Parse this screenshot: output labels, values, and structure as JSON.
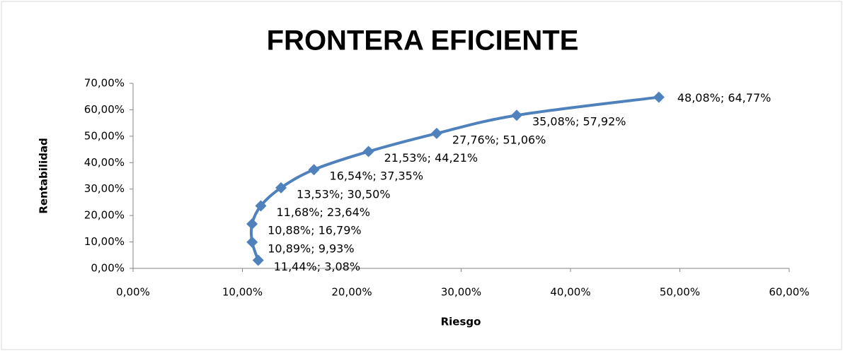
{
  "chart_data": {
    "type": "scatter",
    "title": "FRONTERA EFICIENTE",
    "x_label": "Riesgo",
    "y_label": "Rentabilidad",
    "series": [
      {
        "color": "#4f81bd",
        "x": [
          11.44,
          10.89,
          10.88,
          11.68,
          13.53,
          16.54,
          21.53,
          27.76,
          35.08,
          48.08
        ],
        "values": [
          3.08,
          9.93,
          16.79,
          23.64,
          30.5,
          37.35,
          44.21,
          51.06,
          57.92,
          64.77
        ],
        "value_labels": [
          "11,44%; 3,08%",
          "10,89%; 9,93%",
          "10,88%; 16,79%",
          "11,68%; 23,64%",
          "13,53%; 30,50%",
          "16,54%; 37,35%",
          "21,53%; 44,21%",
          "27,76%; 51,06%",
          "35,08%; 57,92%",
          "48,08%; 64,77%"
        ]
      }
    ],
    "xlim": [
      0,
      60
    ],
    "xticks": [
      {
        "value": 0,
        "label": "0,00%"
      },
      {
        "value": 10,
        "label": "10,00%"
      },
      {
        "value": 20,
        "label": "20,00%"
      },
      {
        "value": 30,
        "label": "30,00%"
      },
      {
        "value": 40,
        "label": "40,00%"
      },
      {
        "value": 50,
        "label": "50,00%"
      },
      {
        "value": 60,
        "label": "60,00%"
      }
    ],
    "ylim": [
      0,
      70
    ],
    "yticks": [
      {
        "value": 0,
        "label": "0,00%"
      },
      {
        "value": 10,
        "label": "10,00%"
      },
      {
        "value": 20,
        "label": "20,00%"
      },
      {
        "value": 30,
        "label": "30,00%"
      },
      {
        "value": 40,
        "label": "40,00%"
      },
      {
        "value": 50,
        "label": "50,00%"
      },
      {
        "value": 60,
        "label": "60,00%"
      },
      {
        "value": 70,
        "label": "70,00%"
      }
    ],
    "grid": false
  }
}
